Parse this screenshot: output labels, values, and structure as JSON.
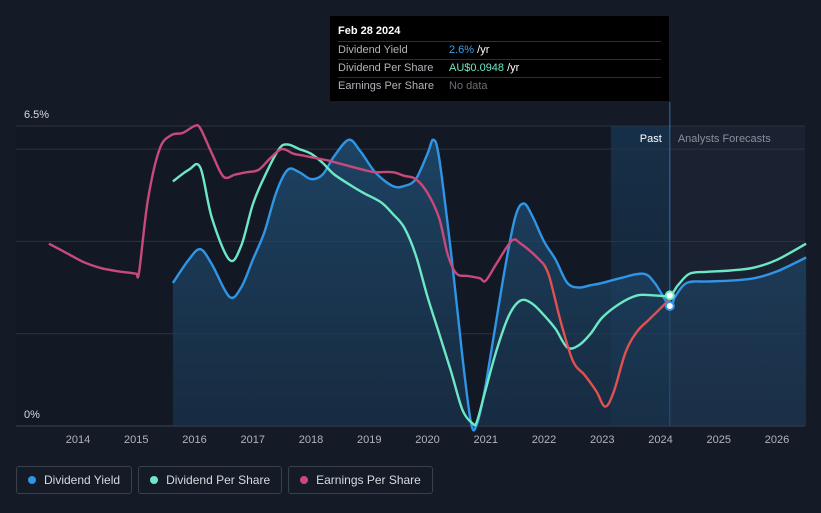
{
  "chart_data": {
    "type": "line",
    "title": "",
    "y_axis": {
      "top_label": "6.5%",
      "bottom_label": "0%",
      "ylim": [
        0,
        6.5
      ],
      "unit": "%"
    },
    "x_axis": {
      "ticks": [
        "2014",
        "2015",
        "2016",
        "2017",
        "2018",
        "2019",
        "2020",
        "2021",
        "2022",
        "2023",
        "2024",
        "2025",
        "2026"
      ],
      "xlim": [
        2013.3,
        2026.5
      ]
    },
    "regions": {
      "past_label": "Past",
      "forecast_label": "Analysts Forecasts",
      "past_shade_from": 2023.15,
      "divider_at": 2024.16
    },
    "series": [
      {
        "name": "Dividend Yield",
        "color": "#2f95e4",
        "filled": true,
        "points": [
          [
            2015.63,
            3.1
          ],
          [
            2015.9,
            3.6
          ],
          [
            2016.1,
            3.83
          ],
          [
            2016.3,
            3.5
          ],
          [
            2016.6,
            2.8
          ],
          [
            2016.8,
            3.0
          ],
          [
            2017.0,
            3.6
          ],
          [
            2017.2,
            4.2
          ],
          [
            2017.4,
            5.05
          ],
          [
            2017.6,
            5.55
          ],
          [
            2017.8,
            5.5
          ],
          [
            2018.0,
            5.35
          ],
          [
            2018.2,
            5.45
          ],
          [
            2018.4,
            5.85
          ],
          [
            2018.65,
            6.2
          ],
          [
            2018.85,
            5.95
          ],
          [
            2019.1,
            5.5
          ],
          [
            2019.4,
            5.2
          ],
          [
            2019.6,
            5.2
          ],
          [
            2019.8,
            5.35
          ],
          [
            2020.0,
            5.9
          ],
          [
            2020.1,
            6.2
          ],
          [
            2020.2,
            5.8
          ],
          [
            2020.4,
            3.8
          ],
          [
            2020.6,
            1.5
          ],
          [
            2020.75,
            0.05
          ],
          [
            2020.85,
            0.05
          ],
          [
            2021.0,
            0.9
          ],
          [
            2021.3,
            3.2
          ],
          [
            2021.5,
            4.5
          ],
          [
            2021.65,
            4.82
          ],
          [
            2021.8,
            4.55
          ],
          [
            2022.0,
            4.0
          ],
          [
            2022.2,
            3.6
          ],
          [
            2022.4,
            3.1
          ],
          [
            2022.6,
            3.0
          ],
          [
            2022.8,
            3.05
          ],
          [
            2023.0,
            3.1
          ],
          [
            2023.3,
            3.2
          ],
          [
            2023.7,
            3.3
          ],
          [
            2023.9,
            3.1
          ],
          [
            2024.16,
            2.6
          ],
          [
            2024.25,
            2.8
          ],
          [
            2024.45,
            3.1
          ],
          [
            2024.8,
            3.13
          ],
          [
            2025.2,
            3.15
          ],
          [
            2025.6,
            3.2
          ],
          [
            2026.0,
            3.35
          ],
          [
            2026.5,
            3.65
          ]
        ]
      },
      {
        "name": "Dividend Per Share",
        "color": "#6ee7c5",
        "filled": false,
        "points": [
          [
            2015.63,
            5.3
          ],
          [
            2015.9,
            5.55
          ],
          [
            2016.1,
            5.6
          ],
          [
            2016.3,
            4.5
          ],
          [
            2016.6,
            3.6
          ],
          [
            2016.8,
            3.9
          ],
          [
            2017.0,
            4.8
          ],
          [
            2017.2,
            5.4
          ],
          [
            2017.45,
            6.0
          ],
          [
            2017.6,
            6.1
          ],
          [
            2017.8,
            6.0
          ],
          [
            2018.0,
            5.9
          ],
          [
            2018.2,
            5.7
          ],
          [
            2018.4,
            5.45
          ],
          [
            2018.7,
            5.2
          ],
          [
            2018.9,
            5.05
          ],
          [
            2019.2,
            4.85
          ],
          [
            2019.4,
            4.6
          ],
          [
            2019.6,
            4.3
          ],
          [
            2019.8,
            3.7
          ],
          [
            2020.0,
            2.8
          ],
          [
            2020.2,
            2.0
          ],
          [
            2020.4,
            1.2
          ],
          [
            2020.6,
            0.35
          ],
          [
            2020.78,
            0.05
          ],
          [
            2020.85,
            0.1
          ],
          [
            2021.0,
            0.8
          ],
          [
            2021.2,
            1.7
          ],
          [
            2021.4,
            2.4
          ],
          [
            2021.6,
            2.72
          ],
          [
            2021.8,
            2.65
          ],
          [
            2022.0,
            2.4
          ],
          [
            2022.2,
            2.1
          ],
          [
            2022.4,
            1.7
          ],
          [
            2022.6,
            1.75
          ],
          [
            2022.8,
            2.0
          ],
          [
            2023.0,
            2.35
          ],
          [
            2023.3,
            2.65
          ],
          [
            2023.6,
            2.83
          ],
          [
            2023.9,
            2.83
          ],
          [
            2024.16,
            2.83
          ],
          [
            2024.3,
            3.05
          ],
          [
            2024.5,
            3.3
          ],
          [
            2024.8,
            3.34
          ],
          [
            2025.2,
            3.37
          ],
          [
            2025.6,
            3.43
          ],
          [
            2026.0,
            3.6
          ],
          [
            2026.5,
            3.95
          ]
        ]
      },
      {
        "name": "Earnings Per Share",
        "color": "#c8497a",
        "filled": false,
        "past_only": true,
        "points": [
          [
            2013.5,
            3.95
          ],
          [
            2013.8,
            3.75
          ],
          [
            2014.1,
            3.55
          ],
          [
            2014.4,
            3.42
          ],
          [
            2014.7,
            3.35
          ],
          [
            2014.9,
            3.32
          ],
          [
            2015.0,
            3.3
          ],
          [
            2015.05,
            3.35
          ],
          [
            2015.2,
            4.9
          ],
          [
            2015.4,
            6.0
          ],
          [
            2015.6,
            6.3
          ],
          [
            2015.8,
            6.35
          ],
          [
            2016.0,
            6.5
          ],
          [
            2016.1,
            6.45
          ],
          [
            2016.3,
            5.9
          ],
          [
            2016.5,
            5.4
          ],
          [
            2016.7,
            5.45
          ],
          [
            2016.9,
            5.5
          ],
          [
            2017.1,
            5.55
          ],
          [
            2017.3,
            5.8
          ],
          [
            2017.5,
            6.0
          ],
          [
            2017.7,
            5.9
          ],
          [
            2017.9,
            5.85
          ],
          [
            2018.1,
            5.8
          ],
          [
            2018.3,
            5.75
          ],
          [
            2018.6,
            5.65
          ],
          [
            2018.9,
            5.55
          ],
          [
            2019.1,
            5.5
          ],
          [
            2019.4,
            5.5
          ],
          [
            2019.6,
            5.42
          ],
          [
            2019.8,
            5.35
          ],
          [
            2020.0,
            5.05
          ],
          [
            2020.2,
            4.5
          ],
          [
            2020.35,
            3.7
          ],
          [
            2020.5,
            3.3
          ],
          [
            2020.7,
            3.25
          ],
          [
            2020.9,
            3.2
          ],
          [
            2021.0,
            3.15
          ],
          [
            2021.2,
            3.55
          ],
          [
            2021.45,
            4.02
          ],
          [
            2021.6,
            3.95
          ],
          [
            2021.8,
            3.75
          ],
          [
            2022.0,
            3.5
          ],
          [
            2022.1,
            3.2
          ],
          [
            2022.3,
            2.2
          ],
          [
            2022.5,
            1.4
          ],
          [
            2022.7,
            1.1
          ],
          [
            2022.9,
            0.75
          ],
          [
            2023.05,
            0.42
          ],
          [
            2023.2,
            0.75
          ],
          [
            2023.4,
            1.6
          ],
          [
            2023.6,
            2.05
          ],
          [
            2023.8,
            2.3
          ],
          [
            2024.0,
            2.55
          ],
          [
            2024.16,
            2.75
          ]
        ]
      }
    ],
    "markers": [
      {
        "series": "Dividend Yield",
        "x": 2024.16,
        "y": 2.6
      },
      {
        "series": "Dividend Per Share",
        "x": 2024.16,
        "y": 2.83
      }
    ]
  },
  "tooltip": {
    "date": "Feb 28 2024",
    "rows": [
      {
        "label": "Dividend Yield",
        "value": "2.6%",
        "suffix": " /yr"
      },
      {
        "label": "Dividend Per Share",
        "value": "AU$0.0948",
        "suffix": " /yr"
      },
      {
        "label": "Earnings Per Share",
        "value": "No data",
        "suffix": ""
      }
    ]
  },
  "legend": [
    {
      "label": "Dividend Yield",
      "color": "#2f95e4"
    },
    {
      "label": "Dividend Per Share",
      "color": "#6ee7c5"
    },
    {
      "label": "Earnings Per Share",
      "color": "#c8497a"
    }
  ],
  "colors": {
    "background": "#151b26",
    "grid": "#2c3340",
    "forecast_shade": "#1a2130",
    "past_shade": "#17324c",
    "eps_recent": "#e2504f"
  }
}
